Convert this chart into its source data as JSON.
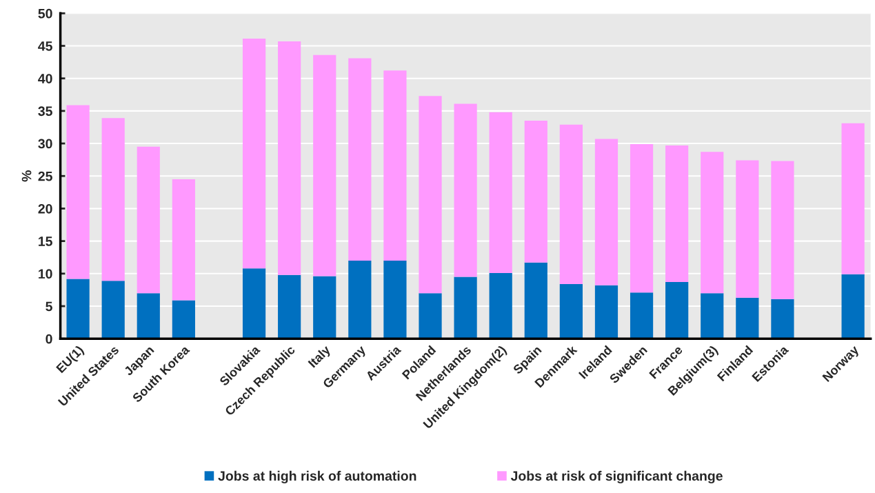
{
  "chart_data": {
    "type": "bar",
    "stacked": true,
    "ylabel": "%",
    "categories": [
      "EU(1)",
      "United States",
      "Japan",
      "South Korea",
      null,
      "Slovakia",
      "Czech Republic",
      "Italy",
      "Germany",
      "Austria",
      "Poland",
      "Netherlands",
      "United Kingdom(2)",
      "Spain",
      "Denmark",
      "Ireland",
      "Sweden",
      "France",
      "Belgium(3)",
      "Finland",
      "Estonia",
      null,
      "Norway"
    ],
    "series": [
      {
        "name": "Jobs at high risk of automation",
        "color": "#0070c0",
        "values": [
          9.2,
          8.9,
          7.0,
          5.9,
          null,
          10.8,
          9.8,
          9.6,
          12.0,
          12.0,
          7.0,
          9.5,
          10.1,
          11.7,
          8.4,
          8.2,
          7.1,
          8.7,
          7.0,
          6.3,
          6.1,
          null,
          9.9
        ]
      },
      {
        "name": "Jobs at risk of significant change",
        "color": "#ff99ff",
        "values": [
          26.7,
          25.0,
          22.5,
          18.6,
          null,
          35.3,
          35.9,
          34.0,
          31.1,
          29.2,
          30.3,
          26.6,
          24.7,
          21.8,
          24.5,
          22.5,
          22.8,
          21.0,
          21.7,
          21.1,
          21.2,
          null,
          23.2
        ]
      }
    ],
    "ylim": [
      0,
      50
    ],
    "yticks": [
      0,
      5,
      10,
      15,
      20,
      25,
      30,
      35,
      40,
      45,
      50
    ],
    "grid": "y",
    "legend": "bottom"
  }
}
